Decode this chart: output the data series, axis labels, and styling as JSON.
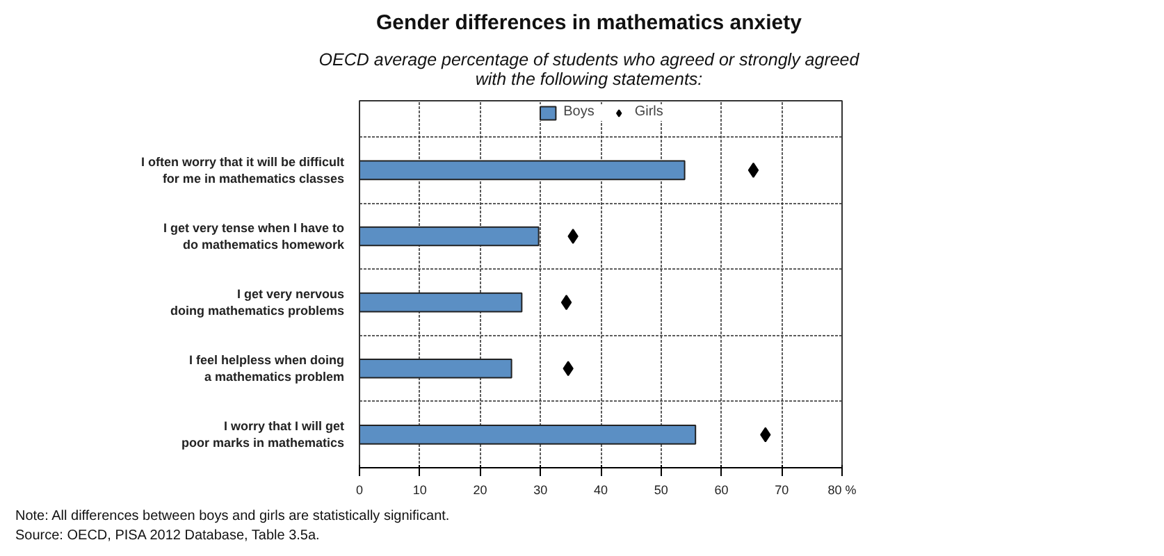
{
  "chart_data": {
    "type": "bar",
    "orientation": "horizontal",
    "title": "Gender differences in mathematics anxiety",
    "subtitle": "OECD average percentage of students who agreed or strongly agreed\nwith the following statements:",
    "categories": [
      "I often worry that it will be difficult\nfor me in mathematics classes",
      "I get very tense when I have to\ndo mathematics homework",
      "I get very nervous\ndoing mathematics problems",
      "I feel helpless when doing\na mathematics problem",
      "I worry that I will get\npoor marks in mathematics"
    ],
    "series": [
      {
        "name": "Boys",
        "type": "bar",
        "color": "#5b8fc4",
        "values": [
          53.9,
          29.7,
          26.9,
          25.2,
          55.7
        ]
      },
      {
        "name": "Girls",
        "type": "scatter",
        "color": "#000000",
        "marker": "diamond",
        "values": [
          65.3,
          35.4,
          34.3,
          34.6,
          67.3
        ]
      }
    ],
    "xlim": [
      0,
      80
    ],
    "xticks": [
      0,
      10,
      20,
      30,
      40,
      50,
      60,
      70,
      {
        "value": 80,
        "label": "80 %"
      }
    ],
    "grid": true,
    "legend": "top",
    "annotations": [
      "Note: All differences between boys and girls are statistically significant.",
      "Source: OECD, PISA 2012 Database, Table 3.5a."
    ]
  }
}
